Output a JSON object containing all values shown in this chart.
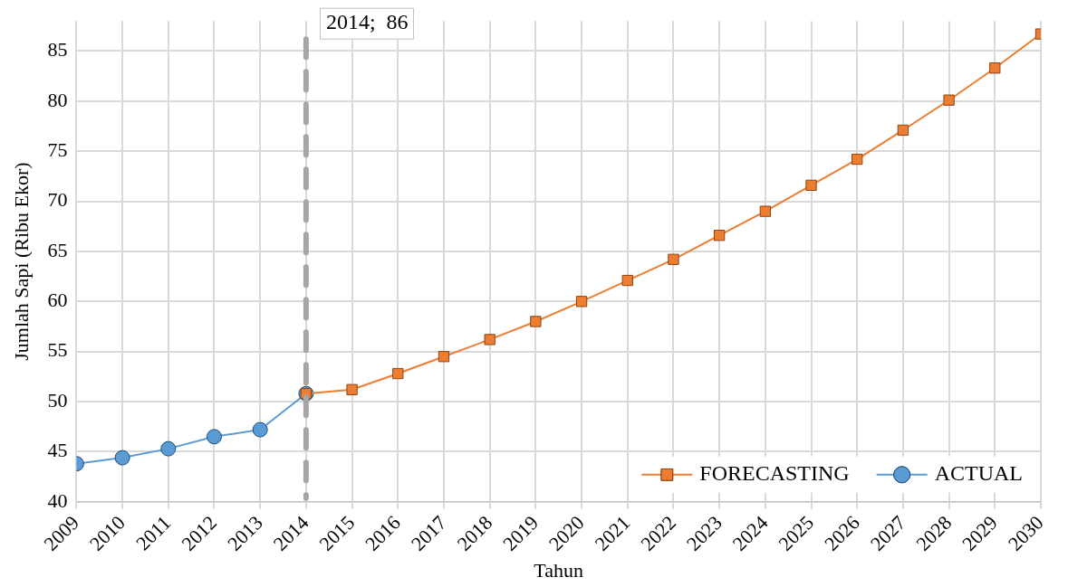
{
  "chart_data": {
    "type": "line",
    "xlabel": "Tahun",
    "ylabel": "Jumlah Sapi (Ribu Ekor)",
    "xlim": [
      2009,
      2030
    ],
    "xticks": [
      2009,
      2010,
      2011,
      2012,
      2013,
      2014,
      2015,
      2016,
      2017,
      2018,
      2019,
      2020,
      2021,
      2022,
      2023,
      2024,
      2025,
      2026,
      2027,
      2028,
      2029,
      2030
    ],
    "ylim": [
      40,
      88
    ],
    "yticks": [
      40,
      45,
      50,
      55,
      60,
      65,
      70,
      75,
      80,
      85
    ],
    "grid": true,
    "legend": "bottom right",
    "line_style": "solid",
    "series": [
      {
        "name": "FORECASTING",
        "color": "#ed7d31",
        "marker": "square",
        "x": [
          2014,
          2015,
          2016,
          2017,
          2018,
          2019,
          2020,
          2021,
          2022,
          2023,
          2024,
          2025,
          2026,
          2027,
          2028,
          2029,
          2030
        ],
        "values": [
          50.8,
          51.2,
          52.8,
          54.5,
          56.2,
          58.0,
          60.0,
          62.1,
          64.2,
          66.6,
          69.0,
          71.6,
          74.2,
          77.1,
          80.1,
          83.3,
          86.7
        ]
      },
      {
        "name": "ACTUAL",
        "color": "#5b9bd5",
        "marker": "circle",
        "x": [
          2009,
          2010,
          2011,
          2012,
          2013,
          2014
        ],
        "values": [
          43.8,
          44.4,
          45.3,
          46.5,
          47.2,
          50.8
        ]
      }
    ],
    "ref_lines": [
      {
        "axis": "x",
        "value": 2014,
        "label": "2014;  86",
        "color": "#a6a6a6",
        "line_style": "dashed"
      }
    ]
  }
}
